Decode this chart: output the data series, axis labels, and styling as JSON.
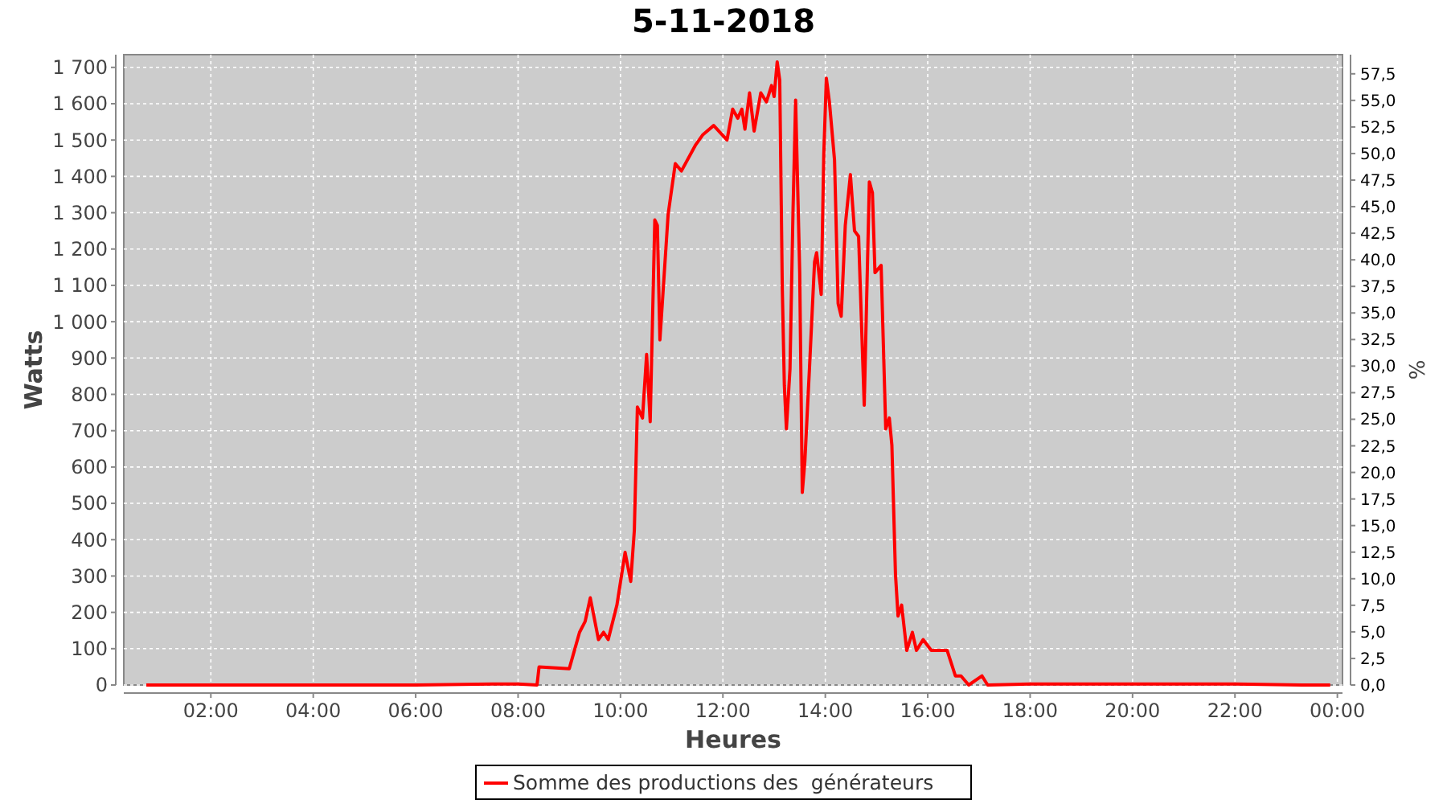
{
  "chart_data": {
    "type": "line",
    "title": "5-11-2018",
    "xlabel": "Heures",
    "ylabel": "Watts",
    "y2label": "%",
    "x": [
      0.74,
      2,
      4,
      6,
      7.5,
      8.0,
      8.37,
      8.41,
      9.0,
      9.2,
      9.31,
      9.41,
      9.57,
      9.67,
      9.76,
      9.93,
      10.09,
      10.2,
      10.27,
      10.33,
      10.43,
      10.51,
      10.58,
      10.67,
      10.72,
      10.77,
      10.93,
      11.07,
      11.19,
      11.46,
      11.61,
      11.82,
      12.08,
      12.19,
      12.29,
      12.37,
      12.43,
      12.52,
      12.61,
      12.74,
      12.85,
      12.95,
      13.0,
      13.06,
      13.11,
      13.16,
      13.2,
      13.24,
      13.31,
      13.37,
      13.42,
      13.5,
      13.55,
      13.6,
      13.69,
      13.79,
      13.83,
      13.92,
      13.97,
      14.02,
      14.08,
      14.18,
      14.25,
      14.31,
      14.39,
      14.49,
      14.57,
      14.65,
      14.76,
      14.86,
      14.92,
      14.97,
      15.09,
      15.18,
      15.25,
      15.3,
      15.37,
      15.42,
      15.49,
      15.59,
      15.7,
      15.78,
      15.91,
      16.07,
      16.38,
      16.54,
      16.65,
      16.8,
      17.06,
      17.17,
      18,
      20,
      22,
      23.3,
      23.86
    ],
    "series": [
      {
        "name": "Somme des productions des  générateurs",
        "color": "#ff0000",
        "values": [
          0,
          0,
          0,
          0,
          3,
          3,
          0,
          50,
          45,
          145,
          175,
          240,
          125,
          145,
          125,
          220,
          365,
          285,
          425,
          765,
          735,
          910,
          725,
          1280,
          1265,
          950,
          1295,
          1435,
          1415,
          1485,
          1515,
          1540,
          1500,
          1585,
          1560,
          1585,
          1530,
          1630,
          1525,
          1630,
          1605,
          1650,
          1620,
          1715,
          1665,
          1090,
          825,
          705,
          870,
          1310,
          1610,
          1135,
          530,
          615,
          870,
          1165,
          1190,
          1075,
          1460,
          1670,
          1605,
          1445,
          1050,
          1015,
          1265,
          1405,
          1250,
          1235,
          770,
          1385,
          1355,
          1135,
          1155,
          705,
          735,
          660,
          305,
          190,
          220,
          95,
          145,
          95,
          125,
          95,
          95,
          25,
          25,
          0,
          25,
          0,
          3,
          3,
          3,
          0,
          0
        ]
      }
    ],
    "xlim": [
      0.3,
      24.1
    ],
    "xticks": [
      {
        "value": 2,
        "label": "02:00"
      },
      {
        "value": 4,
        "label": "04:00"
      },
      {
        "value": 6,
        "label": "06:00"
      },
      {
        "value": 8,
        "label": "08:00"
      },
      {
        "value": 10,
        "label": "10:00"
      },
      {
        "value": 12,
        "label": "12:00"
      },
      {
        "value": 14,
        "label": "14:00"
      },
      {
        "value": 16,
        "label": "16:00"
      },
      {
        "value": 18,
        "label": "18:00"
      },
      {
        "value": 20,
        "label": "20:00"
      },
      {
        "value": 22,
        "label": "22:00"
      },
      {
        "value": 24,
        "label": "00:00"
      }
    ],
    "ylim": [
      0,
      1735
    ],
    "yticks": [
      0,
      100,
      200,
      300,
      400,
      500,
      600,
      700,
      800,
      900,
      {
        "value": 1000,
        "label": "1 000"
      },
      {
        "value": 1100,
        "label": "1 100"
      },
      {
        "value": 1200,
        "label": "1 200"
      },
      {
        "value": 1300,
        "label": "1 300"
      },
      {
        "value": 1400,
        "label": "1 400"
      },
      {
        "value": 1500,
        "label": "1 500"
      },
      {
        "value": 1600,
        "label": "1 600"
      },
      {
        "value": 1700,
        "label": "1 700"
      }
    ],
    "y2lim": [
      0,
      59.3
    ],
    "y2ticks": [
      {
        "value": 0,
        "label": "0,0"
      },
      {
        "value": 2.5,
        "label": "2,5"
      },
      {
        "value": 5,
        "label": "5,0"
      },
      {
        "value": 7.5,
        "label": "7,5"
      },
      {
        "value": 10,
        "label": "10,0"
      },
      {
        "value": 12.5,
        "label": "12,5"
      },
      {
        "value": 15,
        "label": "15,0"
      },
      {
        "value": 17.5,
        "label": "17,5"
      },
      {
        "value": 20,
        "label": "20,0"
      },
      {
        "value": 22.5,
        "label": "22,5"
      },
      {
        "value": 25,
        "label": "25,0"
      },
      {
        "value": 27.5,
        "label": "27,5"
      },
      {
        "value": 30,
        "label": "30,0"
      },
      {
        "value": 32.5,
        "label": "32,5"
      },
      {
        "value": 35,
        "label": "35,0"
      },
      {
        "value": 37.5,
        "label": "37,5"
      },
      {
        "value": 40,
        "label": "40,0"
      },
      {
        "value": 42.5,
        "label": "42,5"
      },
      {
        "value": 45,
        "label": "45,0"
      },
      {
        "value": 47.5,
        "label": "47,5"
      },
      {
        "value": 50,
        "label": "50,0"
      },
      {
        "value": 52.5,
        "label": "52,5"
      },
      {
        "value": 55,
        "label": "55,0"
      },
      {
        "value": 57.5,
        "label": "57,5"
      }
    ],
    "grid": true,
    "legend": "bottom",
    "line_style": "solid"
  }
}
